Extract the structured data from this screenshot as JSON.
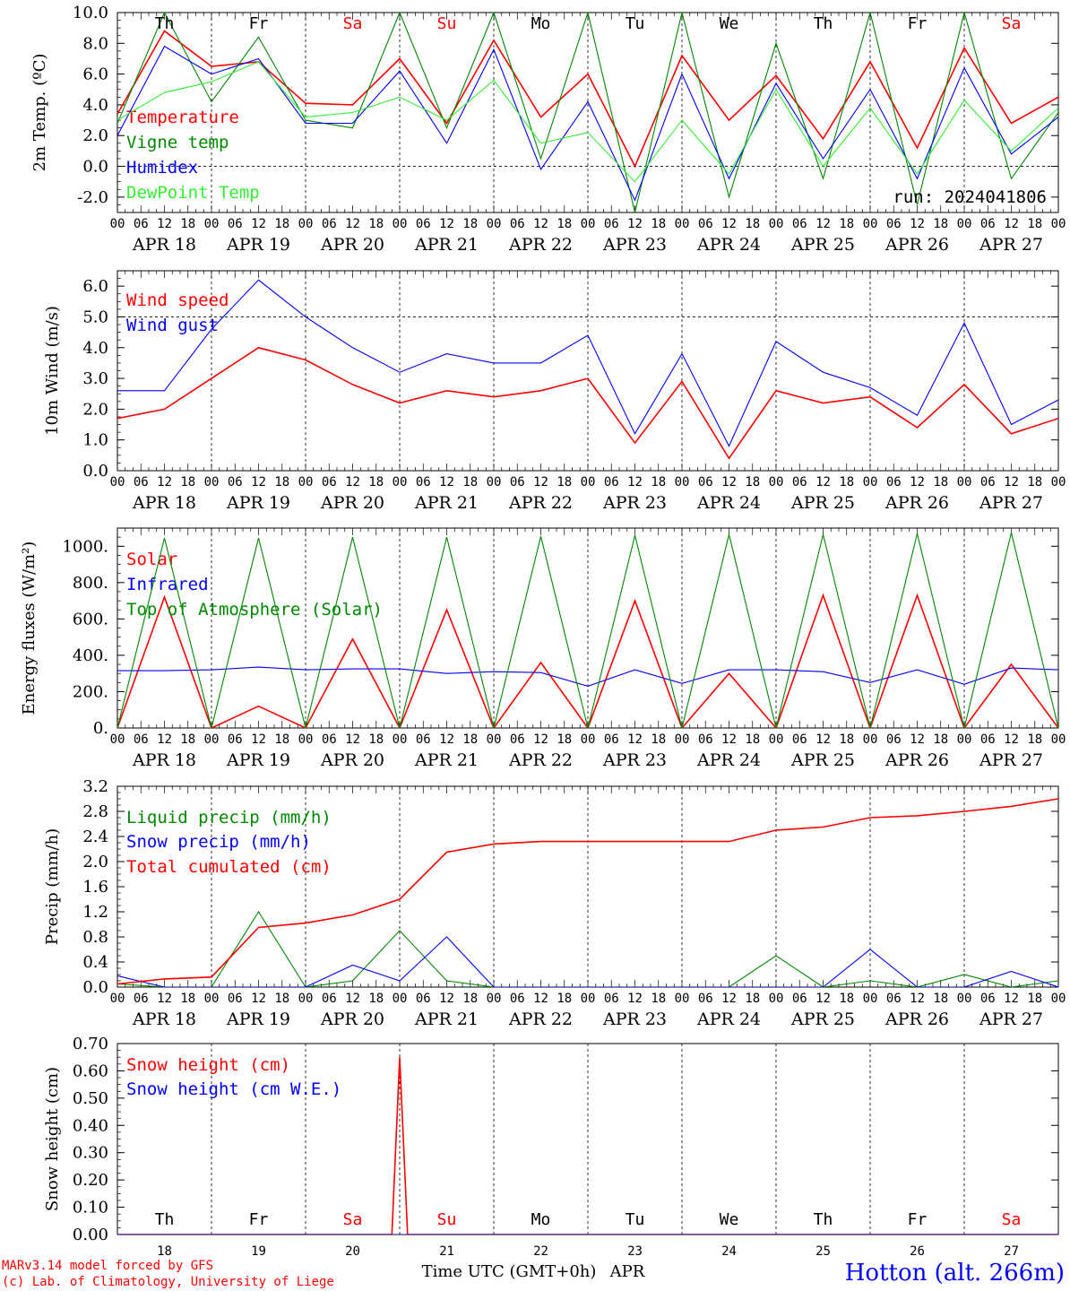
{
  "colors": {
    "red": "#ff0000",
    "green": "#008800",
    "blue": "#0000ff",
    "lime": "#33ee33",
    "purple": "#880088"
  },
  "x_hour_ticks": [
    "00",
    "06",
    "12",
    "18"
  ],
  "date_labels": [
    "APR 18",
    "APR 19",
    "APR 20",
    "APR 21",
    "APR 22",
    "APR 23",
    "APR 24",
    "APR 25",
    "APR 26",
    "APR 27"
  ],
  "day_numbers": [
    "18",
    "19",
    "20",
    "21",
    "22",
    "23",
    "24",
    "25",
    "26",
    "27"
  ],
  "weekdays": [
    {
      "label": "Th",
      "weekend": false
    },
    {
      "label": "Fr",
      "weekend": false
    },
    {
      "label": "Sa",
      "weekend": true
    },
    {
      "label": "Su",
      "weekend": true
    },
    {
      "label": "Mo",
      "weekend": false
    },
    {
      "label": "Tu",
      "weekend": false
    },
    {
      "label": "We",
      "weekend": false
    },
    {
      "label": "Th",
      "weekend": false
    },
    {
      "label": "Fr",
      "weekend": false
    },
    {
      "label": "Sa",
      "weekend": true
    }
  ],
  "run_label": "run: 2024041806",
  "x_axis_title": "Time UTC (GMT+0h)",
  "month_label": "APR",
  "credits": {
    "line1": "MARv3.14 model forced by GFS",
    "line2": "(c) Lab. of Climatology, University of Liege"
  },
  "station": "Hotton (alt. 266m)",
  "chart_data": [
    {
      "type": "line",
      "ylabel": "2m Temp. (ºC)",
      "ylim": [
        -3,
        10
      ],
      "yticks": [
        "-2.0",
        "0.0",
        "2.0",
        "4.0",
        "6.0",
        "8.0",
        "10.0"
      ],
      "ytick_values": [
        -2,
        0,
        2,
        4,
        6,
        8,
        10
      ],
      "dashed_ref": 0,
      "x_hours": [
        0,
        12,
        24,
        36,
        48,
        60,
        72,
        84,
        96,
        108,
        120,
        132,
        144,
        156,
        168,
        180,
        192,
        204,
        216,
        228,
        240
      ],
      "series": [
        {
          "name": "Temperature",
          "color": "#ff0000",
          "values": [
            3.4,
            8.8,
            6.5,
            6.8,
            4.1,
            4.0,
            7.0,
            2.8,
            8.2,
            3.2,
            6.0,
            0.0,
            7.2,
            3.0,
            5.9,
            1.8,
            6.8,
            1.2,
            7.7,
            2.8,
            4.5
          ]
        },
        {
          "name": "Vigne temp",
          "color": "#008800",
          "values": [
            2.8,
            10.0,
            4.2,
            8.4,
            3.0,
            2.5,
            10.0,
            2.5,
            10.0,
            0.5,
            10.0,
            -3.0,
            10.0,
            -2.0,
            8.0,
            -0.8,
            10.0,
            -2.5,
            10.0,
            -0.8,
            3.5
          ]
        },
        {
          "name": "Humidex",
          "color": "#0000ff",
          "values": [
            2.0,
            7.8,
            6.0,
            7.0,
            2.8,
            2.8,
            6.2,
            1.5,
            7.6,
            -0.2,
            4.2,
            -2.2,
            6.0,
            -0.8,
            5.4,
            0.5,
            5.0,
            -0.8,
            6.4,
            0.8,
            3.2
          ]
        },
        {
          "name": "DewPoint Temp",
          "color": "#33ee33",
          "values": [
            3.0,
            4.8,
            5.5,
            6.8,
            3.2,
            3.5,
            4.5,
            3.0,
            5.6,
            1.5,
            2.2,
            -1.0,
            3.0,
            -0.5,
            5.0,
            0.0,
            3.8,
            -0.5,
            4.3,
            1.0,
            3.8
          ]
        }
      ]
    },
    {
      "type": "line",
      "ylabel": "10m Wind (m/s)",
      "ylim": [
        0,
        6.5
      ],
      "yticks": [
        "0.0",
        "1.0",
        "2.0",
        "3.0",
        "4.0",
        "5.0",
        "6.0"
      ],
      "ytick_values": [
        0,
        1,
        2,
        3,
        4,
        5,
        6
      ],
      "dashed_ref": 5,
      "x_hours": [
        0,
        12,
        24,
        36,
        48,
        60,
        72,
        84,
        96,
        108,
        120,
        132,
        144,
        156,
        168,
        180,
        192,
        204,
        216,
        228,
        240
      ],
      "series": [
        {
          "name": "Wind speed",
          "color": "#ff0000",
          "values": [
            1.7,
            2.0,
            3.0,
            4.0,
            3.6,
            2.8,
            2.2,
            2.6,
            2.4,
            2.6,
            3.0,
            0.9,
            2.9,
            0.4,
            2.6,
            2.2,
            2.4,
            1.4,
            2.8,
            1.2,
            1.7
          ]
        },
        {
          "name": "Wind gust",
          "color": "#0000ff",
          "values": [
            2.6,
            2.6,
            4.6,
            6.2,
            5.0,
            4.0,
            3.2,
            3.8,
            3.5,
            3.5,
            4.4,
            1.2,
            3.8,
            0.8,
            4.2,
            3.2,
            2.7,
            1.8,
            4.8,
            1.5,
            2.3
          ]
        }
      ]
    },
    {
      "type": "line",
      "ylabel": "Energy fluxes (W/m²)",
      "ylim": [
        0,
        1100
      ],
      "yticks": [
        "0.",
        "200.",
        "400.",
        "600.",
        "800.",
        "1000."
      ],
      "ytick_values": [
        0,
        200,
        400,
        600,
        800,
        1000
      ],
      "x_hours": [
        0,
        12,
        24,
        36,
        48,
        60,
        72,
        84,
        96,
        108,
        120,
        132,
        144,
        156,
        168,
        180,
        192,
        204,
        216,
        228,
        240
      ],
      "series": [
        {
          "name": "Solar",
          "color": "#ff0000",
          "values": [
            0,
            720,
            0,
            120,
            0,
            490,
            0,
            650,
            0,
            360,
            0,
            700,
            0,
            300,
            0,
            730,
            0,
            730,
            0,
            350,
            0
          ]
        },
        {
          "name": "Infrared",
          "color": "#0000ff",
          "values": [
            315,
            315,
            320,
            335,
            320,
            325,
            325,
            300,
            310,
            305,
            230,
            320,
            245,
            320,
            320,
            310,
            250,
            320,
            240,
            330,
            320
          ]
        },
        {
          "name": "Top of Atmosphere (Solar)",
          "color": "#008800",
          "values": [
            0,
            1045,
            0,
            1045,
            0,
            1050,
            0,
            1050,
            0,
            1055,
            0,
            1060,
            0,
            1065,
            0,
            1065,
            0,
            1070,
            0,
            1075,
            0
          ]
        }
      ]
    },
    {
      "type": "line",
      "ylabel": "Precip (mm/h)",
      "ylim": [
        0,
        3.2
      ],
      "yticks": [
        "0.0",
        "0.4",
        "0.8",
        "1.2",
        "1.6",
        "2.0",
        "2.4",
        "2.8",
        "3.2"
      ],
      "ytick_values": [
        0,
        0.4,
        0.8,
        1.2,
        1.6,
        2.0,
        2.4,
        2.8,
        3.2
      ],
      "x_hours": [
        0,
        12,
        24,
        36,
        48,
        60,
        72,
        84,
        96,
        108,
        120,
        132,
        144,
        156,
        168,
        180,
        192,
        204,
        216,
        228,
        240
      ],
      "series": [
        {
          "name": "Liquid precip (mm/h)",
          "color": "#008800",
          "values": [
            0.05,
            0.0,
            0.0,
            1.2,
            0.0,
            0.1,
            0.9,
            0.1,
            0.0,
            0.0,
            0.0,
            0.0,
            0.0,
            0.0,
            0.5,
            0.0,
            0.1,
            0.0,
            0.2,
            0.0,
            0.1
          ]
        },
        {
          "name": "Snow precip (mm/h)",
          "color": "#0000ff",
          "values": [
            0.18,
            0.0,
            0.0,
            0.0,
            0.0,
            0.35,
            0.1,
            0.8,
            0.0,
            0.0,
            0.0,
            0.0,
            0.0,
            0.0,
            0.0,
            0.0,
            0.6,
            0.0,
            0.0,
            0.25,
            0.0
          ]
        },
        {
          "name": "Total cumulated (cm)",
          "color": "#ff0000",
          "values": [
            0.05,
            0.13,
            0.16,
            0.95,
            1.02,
            1.15,
            1.4,
            2.15,
            2.28,
            2.32,
            2.32,
            2.32,
            2.32,
            2.32,
            2.5,
            2.55,
            2.7,
            2.73,
            2.8,
            2.88,
            3.0
          ]
        }
      ]
    },
    {
      "type": "line",
      "ylabel": "Snow height (cm)",
      "ylim": [
        0,
        0.7
      ],
      "yticks": [
        "0.00",
        "0.10",
        "0.20",
        "0.30",
        "0.40",
        "0.50",
        "0.60",
        "0.70"
      ],
      "ytick_values": [
        0,
        0.1,
        0.2,
        0.3,
        0.4,
        0.5,
        0.6,
        0.7
      ],
      "x_hours": [
        0,
        60,
        70,
        72,
        74,
        240
      ],
      "series": [
        {
          "name": "Snow height (cm)",
          "color": "#ff0000",
          "values": [
            0,
            0,
            0,
            0.65,
            0,
            0
          ]
        },
        {
          "name": "Snow height (cm W.E.)",
          "color": "#0000ff",
          "values": [
            0,
            0,
            0,
            0,
            0,
            0
          ]
        }
      ]
    }
  ]
}
